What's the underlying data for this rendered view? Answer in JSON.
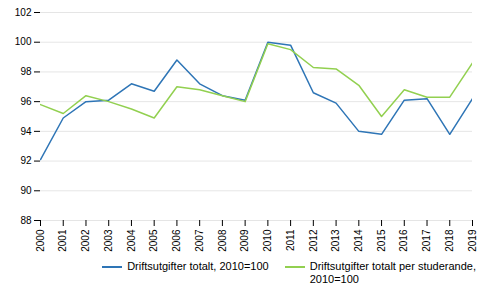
{
  "chart_data": {
    "type": "line",
    "x": [
      2000,
      2001,
      2002,
      2003,
      2004,
      2005,
      2006,
      2007,
      2008,
      2009,
      2010,
      2011,
      2012,
      2013,
      2014,
      2015,
      2016,
      2017,
      2018,
      2019
    ],
    "series": [
      {
        "name": "Driftsutgifter totalt, 2010=100",
        "color": "#2e75b6",
        "values": [
          92.1,
          94.9,
          96.0,
          96.1,
          97.2,
          96.7,
          98.8,
          97.2,
          96.4,
          96.1,
          100.0,
          99.8,
          96.6,
          95.9,
          94.0,
          93.8,
          96.1,
          96.2,
          93.8,
          96.2
        ]
      },
      {
        "name": "Driftsutgifter totalt per studerande,\n2010=100",
        "color": "#92d050",
        "values": [
          95.8,
          95.2,
          96.4,
          96.0,
          95.5,
          94.9,
          97.0,
          96.8,
          96.4,
          96.0,
          99.9,
          99.5,
          98.3,
          98.2,
          97.1,
          95.0,
          96.8,
          96.3,
          96.3,
          98.6
        ]
      }
    ],
    "xlim": [
      2000,
      2019
    ],
    "xticks": [
      2000,
      2001,
      2002,
      2003,
      2004,
      2005,
      2006,
      2007,
      2008,
      2009,
      2010,
      2011,
      2012,
      2013,
      2014,
      2015,
      2016,
      2017,
      2018,
      2019
    ],
    "ylim": [
      88,
      102
    ],
    "yticks": [
      88,
      90,
      92,
      94,
      96,
      98,
      100,
      102
    ],
    "grid": true,
    "legend": "lower right"
  }
}
